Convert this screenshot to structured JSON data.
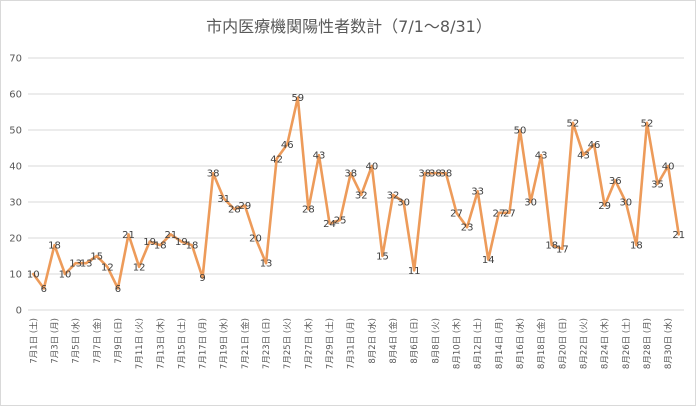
{
  "title": "市内医療機関陽性者数計（7/1～8/31）",
  "colors": {
    "line": "#ed9b5a",
    "grid": "#d9d9d9",
    "text": "#595959"
  },
  "chart_data": {
    "type": "line",
    "title": "市内医療機関陽性者数計（7/1～8/31）",
    "xlabel": "",
    "ylabel": "",
    "ylim": [
      0,
      70
    ],
    "yticks": [
      0,
      10,
      20,
      30,
      40,
      50,
      60,
      70
    ],
    "grid": true,
    "legend": "none",
    "x": [
      "7月1日",
      "7月2日",
      "7月3日",
      "7月4日",
      "7月5日",
      "7月6日",
      "7月7日",
      "7月8日",
      "7月9日",
      "7月10日",
      "7月11日",
      "7月12日",
      "7月13日",
      "7月14日",
      "7月15日",
      "7月16日",
      "7月17日",
      "7月18日",
      "7月19日",
      "7月20日",
      "7月21日",
      "7月22日",
      "7月23日",
      "7月24日",
      "7月25日",
      "7月26日",
      "7月27日",
      "7月28日",
      "7月29日",
      "7月30日",
      "7月31日",
      "8月1日",
      "8月2日",
      "8月3日",
      "8月4日",
      "8月5日",
      "8月6日",
      "8月7日",
      "8月8日",
      "8月9日",
      "8月10日",
      "8月11日",
      "8月12日",
      "8月13日",
      "8月14日",
      "8月15日",
      "8月16日",
      "8月17日",
      "8月18日",
      "8月19日",
      "8月20日",
      "8月21日",
      "8月22日",
      "8月23日",
      "8月24日",
      "8月25日",
      "8月26日",
      "8月27日",
      "8月28日",
      "8月29日",
      "8月30日",
      "8月31日"
    ],
    "x_tick_labels": [
      {
        "date": "7月1日",
        "day": "(土)"
      },
      {
        "date": "7月3日",
        "day": "(月)"
      },
      {
        "date": "7月5日",
        "day": "(水)"
      },
      {
        "date": "7月7日",
        "day": "(金)"
      },
      {
        "date": "7月9日",
        "day": "(日)"
      },
      {
        "date": "7月11日",
        "day": "(火)"
      },
      {
        "date": "7月13日",
        "day": "(木)"
      },
      {
        "date": "7月15日",
        "day": "(土)"
      },
      {
        "date": "7月17日",
        "day": "(月)"
      },
      {
        "date": "7月19日",
        "day": "(水)"
      },
      {
        "date": "7月21日",
        "day": "(金)"
      },
      {
        "date": "7月23日",
        "day": "(日)"
      },
      {
        "date": "7月25日",
        "day": "(火)"
      },
      {
        "date": "7月27日",
        "day": "(木)"
      },
      {
        "date": "7月29日",
        "day": "(土)"
      },
      {
        "date": "7月31日",
        "day": "(月)"
      },
      {
        "date": "8月2日",
        "day": "(水)"
      },
      {
        "date": "8月4日",
        "day": "(金)"
      },
      {
        "date": "8月6日",
        "day": "(日)"
      },
      {
        "date": "8月8日",
        "day": "(火)"
      },
      {
        "date": "8月10日",
        "day": "(木)"
      },
      {
        "date": "8月12日",
        "day": "(土)"
      },
      {
        "date": "8月14日",
        "day": "(月)"
      },
      {
        "date": "8月16日",
        "day": "(水)"
      },
      {
        "date": "8月18日",
        "day": "(金)"
      },
      {
        "date": "8月20日",
        "day": "(日)"
      },
      {
        "date": "8月22日",
        "day": "(火)"
      },
      {
        "date": "8月24日",
        "day": "(木)"
      },
      {
        "date": "8月26日",
        "day": "(土)"
      },
      {
        "date": "8月28日",
        "day": "(月)"
      },
      {
        "date": "8月30日",
        "day": "(水)"
      }
    ],
    "series": [
      {
        "values": [
          10,
          6,
          18,
          10,
          13,
          13,
          15,
          12,
          6,
          21,
          12,
          19,
          18,
          21,
          19,
          18,
          9,
          38,
          31,
          28,
          29,
          20,
          13,
          42,
          46,
          59,
          28,
          43,
          24,
          25,
          38,
          32,
          40,
          15,
          32,
          30,
          11,
          38,
          38,
          38,
          27,
          23,
          33,
          14,
          27,
          27,
          50,
          30,
          43,
          18,
          17,
          52,
          43,
          46,
          29,
          36,
          30,
          18,
          52,
          35,
          40,
          21
        ]
      }
    ]
  }
}
